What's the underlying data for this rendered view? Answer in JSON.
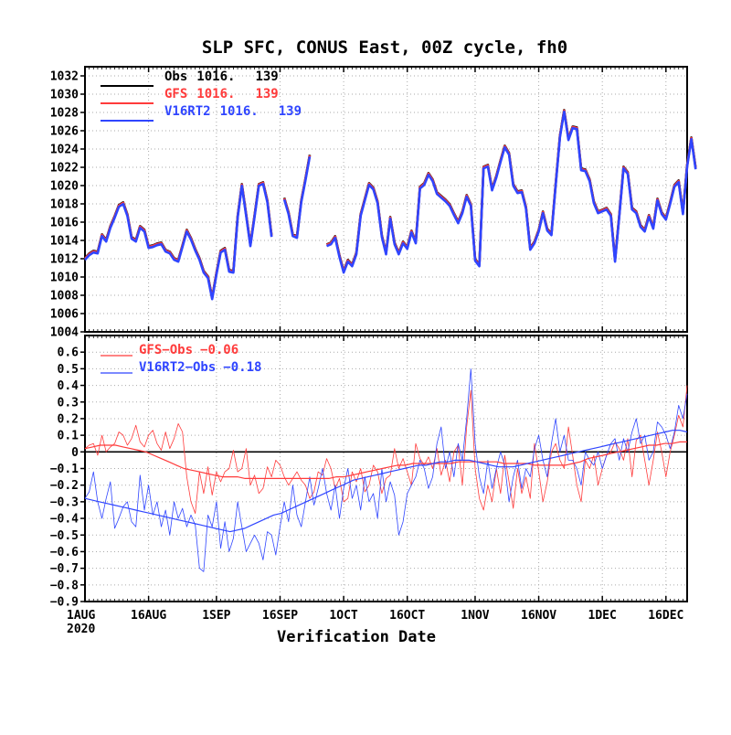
{
  "title": "SLP SFC, CONUS East, 00Z cycle, fh0",
  "xlabel": "Verification Date",
  "year_label": "2020",
  "x_tick_labels": [
    "1AUG",
    "16AUG",
    "1SEP",
    "16SEP",
    "1OCT",
    "16OCT",
    "1NOV",
    "16NOV",
    "1DEC",
    "16DEC"
  ],
  "x_ticks": [
    "2020-08-01",
    "2020-08-16",
    "2020-09-01",
    "2020-09-16",
    "2020-10-01",
    "2020-10-16",
    "2020-11-01",
    "2020-11-16",
    "2020-12-01",
    "2020-12-16"
  ],
  "colors": {
    "obs": "#000000",
    "gfs": "#ff3b3b",
    "v16": "#2f45ff"
  },
  "chart_data": [
    {
      "type": "line",
      "panel": "top",
      "ylabel": "",
      "ylim": [
        1004,
        1033
      ],
      "yticks": [
        1004,
        1006,
        1008,
        1010,
        1012,
        1014,
        1016,
        1018,
        1020,
        1022,
        1024,
        1026,
        1028,
        1030,
        1032
      ],
      "grid": true,
      "legend_position": "top-left",
      "legend": [
        {
          "name": "Obs",
          "stat": "1016.",
          "count": "139",
          "color": "#000000"
        },
        {
          "name": "GFS",
          "stat": "1016.",
          "count": "139",
          "color": "#ff3b3b"
        },
        {
          "name": "V16RT2",
          "stat": "1016.",
          "count": "139",
          "color": "#2f45ff"
        }
      ],
      "start_date": "2020-08-01",
      "segments": [
        {
          "start": "2020-08-01",
          "values": [
            1012.0,
            1012.5,
            1012.8,
            1012.7,
            1014.6,
            1014.0,
            1015.5,
            1016.6,
            1017.8,
            1018.1,
            1016.8,
            1014.3,
            1014.0,
            1015.5,
            1015.1,
            1013.3,
            1013.4,
            1013.6,
            1013.7,
            1012.9,
            1012.7,
            1012.0,
            1011.8,
            1013.4,
            1015.1,
            1014.2,
            1013.0,
            1012.0,
            1010.6,
            1010.0,
            1007.7,
            1010.4,
            1012.8,
            1013.1,
            1010.7,
            1010.6,
            1016.6,
            1020.1,
            1016.8,
            1013.5,
            1016.7,
            1020.1,
            1020.3,
            1018.3,
            1014.5
          ]
        },
        {
          "start": "2020-09-17",
          "values": [
            1018.6,
            1017.0,
            1014.6,
            1014.4,
            1018.3,
            1020.7,
            1023.3
          ]
        },
        {
          "start": "2020-09-27",
          "values": [
            1013.5,
            1013.7,
            1014.4,
            1012.3,
            1010.6,
            1011.8,
            1011.3,
            1012.6,
            1016.8,
            1018.5,
            1020.2,
            1019.7,
            1018.2,
            1014.5,
            1012.6,
            1016.5,
            1013.7,
            1012.6,
            1013.8,
            1013.2,
            1015.0,
            1013.8,
            1019.8,
            1020.2,
            1021.3,
            1020.6,
            1019.2,
            1018.8,
            1018.4,
            1017.9,
            1016.9,
            1016.0,
            1017.1,
            1018.9,
            1017.9,
            1011.9,
            1011.3,
            1022.0,
            1022.2,
            1019.6,
            1021.0,
            1022.7,
            1024.3,
            1023.5,
            1020.1,
            1019.3,
            1019.4,
            1017.6,
            1013.1,
            1013.8,
            1015.1,
            1017.1,
            1015.2,
            1014.7,
            1020.1,
            1025.4,
            1028.2,
            1025.1,
            1026.4,
            1026.3,
            1021.8,
            1021.7,
            1020.6,
            1018.2,
            1017.1,
            1017.3,
            1017.5,
            1016.8,
            1011.8,
            1016.7,
            1022.0,
            1021.4,
            1017.5,
            1017.1,
            1015.6,
            1015.1,
            1016.7,
            1015.4,
            1018.5,
            1017.0,
            1016.4,
            1018.1,
            1020.0,
            1020.5,
            1017.0,
            1022.2,
            1025.2,
            1021.9
          ]
        }
      ],
      "series": [
        {
          "name": "Obs",
          "color": "#000000",
          "offset": 0.06
        },
        {
          "name": "GFS",
          "color": "#ff3b3b",
          "offset": 0.0
        },
        {
          "name": "V16RT2",
          "color": "#2f45ff",
          "offset": -0.12
        }
      ]
    },
    {
      "type": "line",
      "panel": "bottom",
      "ylabel": "",
      "ylim": [
        -0.9,
        0.7
      ],
      "yticks": [
        -0.9,
        -0.8,
        -0.7,
        -0.6,
        -0.5,
        -0.4,
        -0.3,
        -0.2,
        -0.1,
        0,
        0.1,
        0.2,
        0.3,
        0.4,
        0.5,
        0.6
      ],
      "ytick_labels": [
        "−0.9",
        "−0.8",
        "−0.7",
        "−0.6",
        "−0.5",
        "−0.4",
        "−0.3",
        "−0.2",
        "−0.1",
        "0",
        "0.1",
        "0.2",
        "0.3",
        "0.4",
        "0.5",
        "0.6"
      ],
      "grid": true,
      "legend_position": "top-left",
      "legend": [
        {
          "name": "GFS−Obs",
          "stat": "−0.06",
          "color": "#ff3b3b"
        },
        {
          "name": "V16RT2−Obs",
          "stat": "−0.18",
          "color": "#2f45ff"
        }
      ],
      "zero_line": true,
      "series": [
        {
          "name": "GFS−Obs",
          "color": "#ff3b3b",
          "kind": "daily",
          "values": [
            0.02,
            0.04,
            0.05,
            -0.02,
            0.1,
            0.0,
            0.03,
            0.05,
            0.12,
            0.1,
            0.04,
            0.08,
            0.16,
            0.06,
            0.03,
            0.1,
            0.13,
            0.05,
            0.01,
            0.12,
            0.02,
            0.08,
            0.17,
            0.12,
            -0.15,
            -0.3,
            -0.37,
            -0.12,
            -0.25,
            -0.09,
            -0.26,
            -0.12,
            -0.18,
            -0.12,
            -0.1,
            0.01,
            -0.12,
            -0.1,
            0.02,
            -0.2,
            -0.14,
            -0.25,
            -0.22,
            -0.09,
            -0.15,
            -0.05,
            -0.08,
            -0.15,
            -0.2,
            -0.16,
            -0.12,
            -0.17,
            -0.2,
            -0.28,
            -0.24,
            -0.12,
            -0.14,
            -0.04,
            -0.1,
            -0.22,
            -0.16,
            -0.3,
            -0.28,
            -0.12,
            -0.18,
            -0.1,
            -0.24,
            -0.2,
            -0.08,
            -0.12,
            -0.25,
            -0.16,
            -0.14,
            0.02,
            -0.1,
            -0.04,
            -0.12,
            -0.2,
            0.05,
            -0.04,
            -0.08,
            -0.03,
            -0.1,
            0.02,
            -0.14,
            -0.05,
            -0.18,
            0.0,
            0.04,
            -0.2,
            0.15,
            0.37,
            -0.1,
            -0.28,
            -0.35,
            -0.2,
            -0.3,
            -0.1,
            -0.25,
            -0.02,
            -0.18,
            -0.34,
            -0.1,
            -0.25,
            -0.15,
            -0.28,
            0.05,
            -0.12,
            -0.3,
            -0.18,
            0.0,
            0.05,
            -0.05,
            -0.1,
            0.15,
            -0.02,
            -0.2,
            -0.3,
            -0.05,
            -0.1,
            -0.02,
            -0.2,
            -0.1,
            -0.02,
            0.0,
            0.06,
            0.02,
            -0.05,
            0.08,
            -0.15,
            0.07,
            0.1,
            -0.05,
            -0.2,
            -0.05,
            0.12,
            0.0,
            -0.15,
            0.0,
            0.1,
            0.22,
            0.15,
            0.4,
            0.3,
            0.2,
            0.05
          ]
        },
        {
          "name": "V16RT2−Obs",
          "color": "#2f45ff",
          "kind": "daily",
          "values": [
            -0.28,
            -0.24,
            -0.12,
            -0.3,
            -0.4,
            -0.28,
            -0.18,
            -0.46,
            -0.4,
            -0.33,
            -0.3,
            -0.42,
            -0.45,
            -0.14,
            -0.35,
            -0.2,
            -0.38,
            -0.3,
            -0.45,
            -0.35,
            -0.5,
            -0.3,
            -0.4,
            -0.34,
            -0.45,
            -0.38,
            -0.44,
            -0.7,
            -0.72,
            -0.38,
            -0.45,
            -0.3,
            -0.58,
            -0.42,
            -0.6,
            -0.52,
            -0.3,
            -0.45,
            -0.6,
            -0.55,
            -0.5,
            -0.55,
            -0.65,
            -0.48,
            -0.5,
            -0.62,
            -0.45,
            -0.3,
            -0.42,
            -0.2,
            -0.38,
            -0.45,
            -0.3,
            -0.15,
            -0.32,
            -0.22,
            -0.1,
            -0.25,
            -0.35,
            -0.2,
            -0.4,
            -0.22,
            -0.1,
            -0.28,
            -0.2,
            -0.35,
            -0.15,
            -0.3,
            -0.25,
            -0.4,
            -0.1,
            -0.3,
            -0.18,
            -0.26,
            -0.5,
            -0.42,
            -0.25,
            -0.2,
            -0.15,
            -0.05,
            -0.1,
            -0.22,
            -0.15,
            0.05,
            0.15,
            -0.1,
            0.0,
            -0.15,
            0.05,
            -0.05,
            0.2,
            0.5,
            0.05,
            -0.15,
            -0.25,
            -0.05,
            -0.22,
            -0.1,
            0.0,
            -0.08,
            -0.3,
            -0.15,
            -0.05,
            -0.22,
            -0.1,
            -0.15,
            0.02,
            0.1,
            -0.05,
            -0.15,
            0.05,
            0.2,
            0.0,
            0.1,
            -0.05,
            -0.05,
            -0.1,
            -0.2,
            0.0,
            -0.05,
            -0.08,
            0.0,
            -0.1,
            -0.02,
            0.05,
            0.08,
            -0.05,
            0.08,
            0.0,
            0.12,
            0.2,
            0.05,
            0.1,
            -0.05,
            0.0,
            0.18,
            0.15,
            0.1,
            0.02,
            0.12,
            0.28,
            0.2,
            0.35,
            0.38,
            0.3,
            0.15
          ]
        },
        {
          "name": "GFS−Obs mean",
          "color": "#ff3b3b",
          "kind": "running-mean",
          "values": [
            0.02,
            0.03,
            0.04,
            0.04,
            0.04,
            0.03,
            0.02,
            0.01,
            0.0,
            -0.02,
            -0.04,
            -0.06,
            -0.08,
            -0.1,
            -0.11,
            -0.12,
            -0.13,
            -0.14,
            -0.15,
            -0.15,
            -0.15,
            -0.16,
            -0.16,
            -0.16,
            -0.16,
            -0.16,
            -0.16,
            -0.16,
            -0.16,
            -0.16,
            -0.16,
            -0.16,
            -0.16,
            -0.15,
            -0.15,
            -0.14,
            -0.13,
            -0.12,
            -0.11,
            -0.1,
            -0.09,
            -0.08,
            -0.08,
            -0.07,
            -0.07,
            -0.07,
            -0.07,
            -0.07,
            -0.07,
            -0.06,
            -0.06,
            -0.06,
            -0.06,
            -0.06,
            -0.06,
            -0.07,
            -0.07,
            -0.07,
            -0.07,
            -0.08,
            -0.08,
            -0.08,
            -0.08,
            -0.08,
            -0.07,
            -0.06,
            -0.04,
            -0.03,
            -0.02,
            -0.01,
            0.0,
            0.01,
            0.02,
            0.03,
            0.04,
            0.04,
            0.05,
            0.05,
            0.06,
            0.06
          ]
        },
        {
          "name": "V16RT2−Obs mean",
          "color": "#2f45ff",
          "kind": "running-mean",
          "values": [
            -0.28,
            -0.29,
            -0.3,
            -0.31,
            -0.32,
            -0.33,
            -0.34,
            -0.35,
            -0.36,
            -0.37,
            -0.38,
            -0.39,
            -0.4,
            -0.41,
            -0.42,
            -0.43,
            -0.44,
            -0.45,
            -0.46,
            -0.47,
            -0.48,
            -0.47,
            -0.46,
            -0.44,
            -0.42,
            -0.4,
            -0.38,
            -0.37,
            -0.35,
            -0.33,
            -0.31,
            -0.29,
            -0.27,
            -0.25,
            -0.23,
            -0.21,
            -0.19,
            -0.17,
            -0.16,
            -0.15,
            -0.14,
            -0.13,
            -0.12,
            -0.11,
            -0.1,
            -0.09,
            -0.08,
            -0.08,
            -0.07,
            -0.06,
            -0.06,
            -0.05,
            -0.05,
            -0.05,
            -0.06,
            -0.07,
            -0.08,
            -0.09,
            -0.09,
            -0.09,
            -0.08,
            -0.07,
            -0.06,
            -0.05,
            -0.04,
            -0.03,
            -0.02,
            -0.01,
            0.0,
            0.01,
            0.02,
            0.03,
            0.04,
            0.05,
            0.06,
            0.07,
            0.08,
            0.09,
            0.1,
            0.11,
            0.12,
            0.13,
            0.13,
            0.12
          ]
        }
      ]
    }
  ]
}
